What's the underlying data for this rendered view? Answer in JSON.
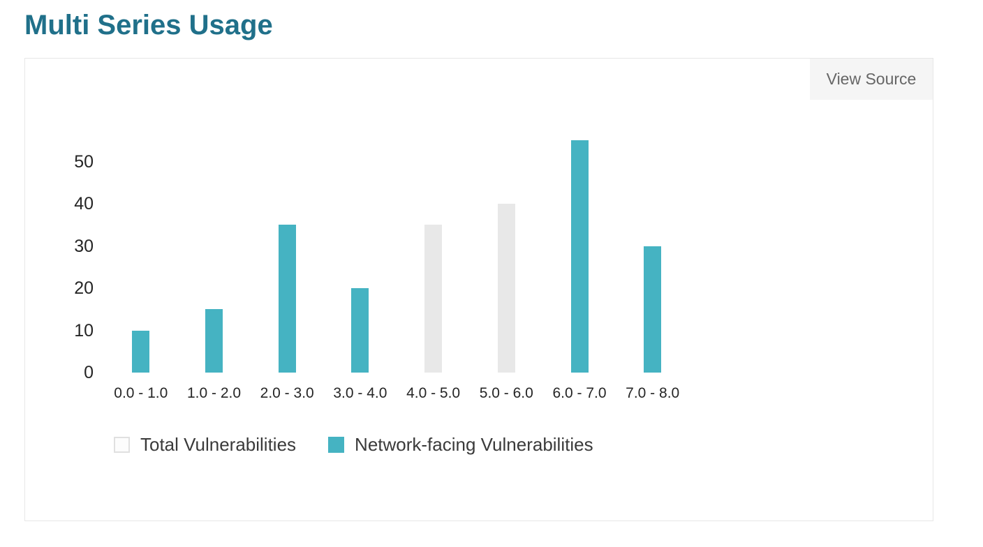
{
  "title": "Multi Series Usage",
  "card": {
    "view_source_label": "View Source"
  },
  "colors": {
    "title": "#20708a",
    "teal_series": "#45b3c2",
    "gray_series": "#e8e8e8",
    "card_border": "#e7e7e7",
    "button_bg": "#f5f5f5",
    "button_text": "#666666",
    "axis_text": "#252525",
    "legend_text": "#3a3a3a"
  },
  "chart_data": {
    "type": "bar",
    "title": "Multi Series Usage",
    "xlabel": "",
    "ylabel": "",
    "categories": [
      "0.0 - 1.0",
      "1.0 - 2.0",
      "2.0 - 3.0",
      "3.0 - 4.0",
      "4.0 - 5.0",
      "5.0 - 6.0",
      "6.0 - 7.0",
      "7.0 - 8.0"
    ],
    "series": [
      {
        "name": "Total Vulnerabilities",
        "color": "#e8e8e8",
        "legend_swatch": {
          "fill": "#fcfcfc",
          "border": "#e0e0e0"
        },
        "values": [
          null,
          null,
          null,
          null,
          35,
          40,
          null,
          null
        ]
      },
      {
        "name": "Network-facing Vulnerabilities",
        "color": "#45b3c2",
        "legend_swatch": {
          "fill": "#45b3c2",
          "border": "#45b3c2"
        },
        "values": [
          10,
          15,
          35,
          20,
          null,
          null,
          55,
          30
        ]
      }
    ],
    "yticks": [
      0,
      10,
      20,
      30,
      40,
      50
    ],
    "ylim": [
      0,
      55
    ],
    "grid": false,
    "axis_lines": false,
    "bar_style": "overlapping",
    "legend_position": "bottom"
  }
}
